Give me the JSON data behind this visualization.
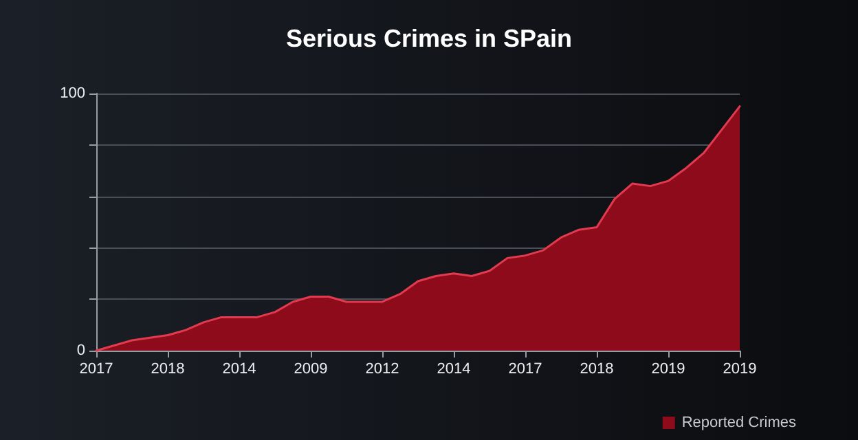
{
  "chart_data": {
    "type": "area",
    "title": "Serious Crimes in SPain",
    "categories": [
      "2017",
      null,
      null,
      null,
      "2018",
      null,
      null,
      null,
      "2014",
      null,
      null,
      null,
      "2009",
      null,
      null,
      null,
      "2012",
      null,
      null,
      null,
      "2014",
      null,
      null,
      null,
      "2017",
      null,
      null,
      null,
      "2018",
      null,
      null,
      null,
      "2019",
      null,
      null,
      null,
      "2019"
    ],
    "series": [
      {
        "name": "Reported Crimes",
        "color": "#8e0b1c",
        "values": [
          0,
          2,
          4,
          5,
          6,
          8,
          11,
          13,
          13,
          13,
          15,
          19,
          21,
          21,
          19,
          19,
          19,
          22,
          27,
          29,
          30,
          29,
          31,
          36,
          37,
          39,
          44,
          47,
          48,
          59,
          65,
          64,
          66,
          71,
          77,
          86,
          95
        ]
      }
    ],
    "ylim": [
      0,
      100
    ],
    "yticks": [
      0,
      {
        "value": 20,
        "label": null
      },
      {
        "value": 40,
        "label": null
      },
      {
        "value": 60,
        "label": null
      },
      {
        "value": 80,
        "label": null
      },
      100
    ],
    "grid": "y",
    "legend": "bottom right",
    "marker": "none",
    "line_style": "solid"
  }
}
